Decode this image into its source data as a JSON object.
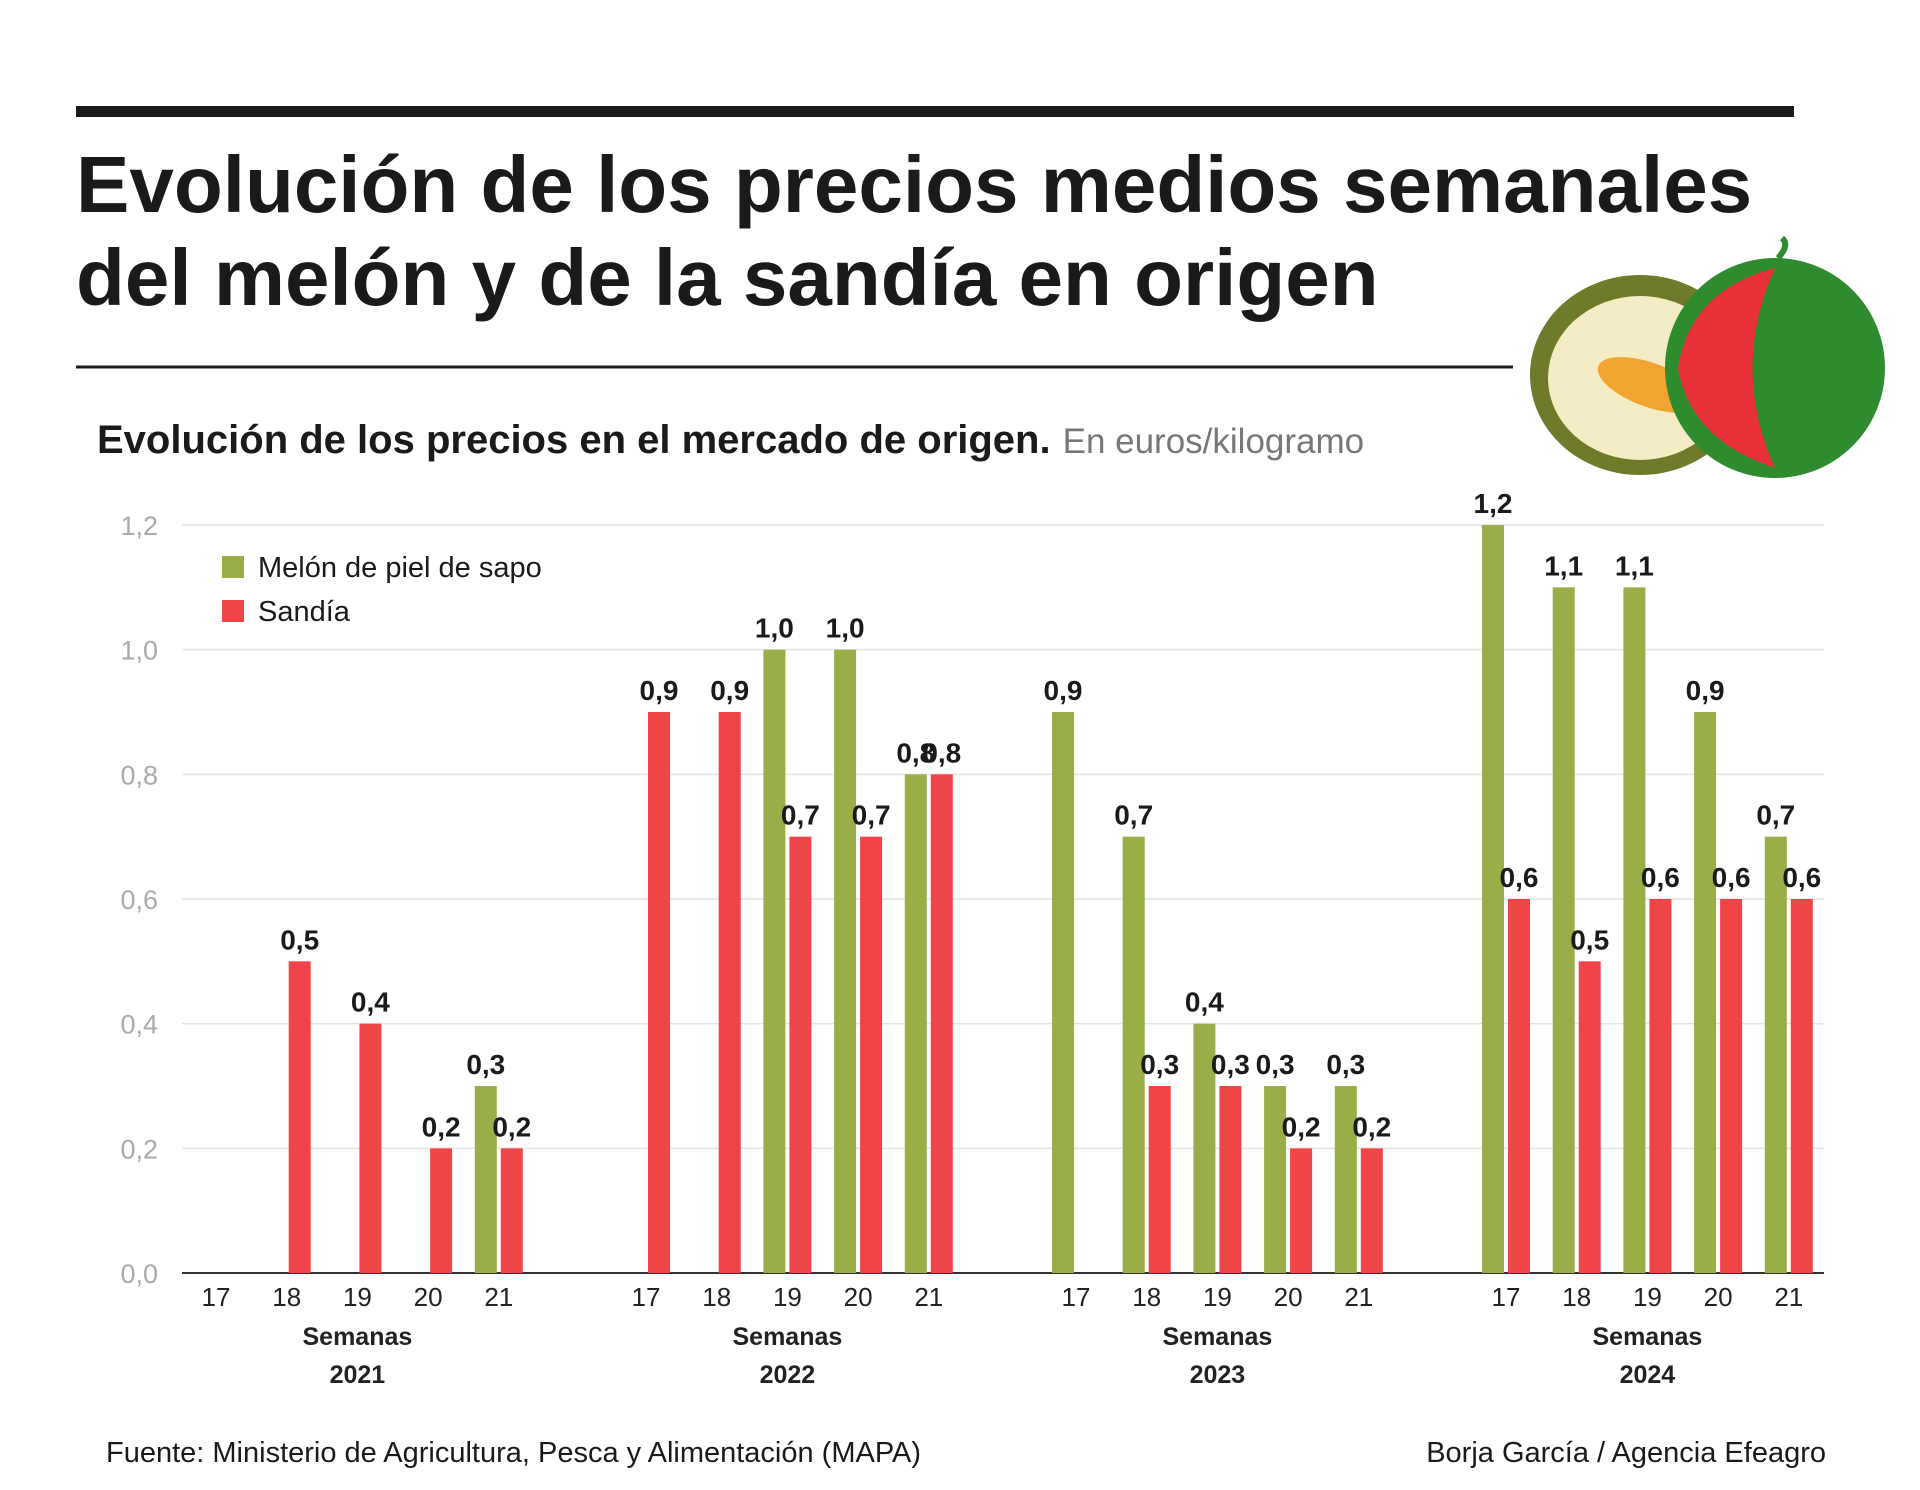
{
  "chart_data": {
    "type": "bar",
    "title_lines": [
      "Evolución de los precios medios semanales",
      "del melón y de la sandía en origen"
    ],
    "subtitle": "Evolución de los precios en el mercado de origen.",
    "unit": "En euros/kilogramo",
    "source": "Fuente: Ministerio de Agricultura, Pesca y Alimentación (MAPA)",
    "credit": "Borja García / Agencia Efeagro",
    "categories": [
      "17",
      "18",
      "19",
      "20",
      "21",
      "17",
      "18",
      "19",
      "20",
      "21",
      "17",
      "18",
      "19",
      "20",
      "21",
      "17",
      "18",
      "19",
      "20",
      "21"
    ],
    "groups": [
      {
        "label": "Semanas",
        "name": "2021"
      },
      {
        "label": "Semanas",
        "name": "2022"
      },
      {
        "label": "Semanas",
        "name": "2023"
      },
      {
        "label": "Semanas",
        "name": "2024"
      }
    ],
    "series": [
      {
        "name": "Melón de piel de sapo",
        "color": "#9aae48",
        "values": [
          null,
          null,
          null,
          null,
          0.3,
          null,
          null,
          1.0,
          1.0,
          0.8,
          0.9,
          0.7,
          0.4,
          0.3,
          0.3,
          1.2,
          1.1,
          1.1,
          0.9,
          0.7
        ],
        "value_labels": [
          null,
          null,
          null,
          null,
          "0,3",
          null,
          null,
          "1,0",
          "1,0",
          "0,8",
          "0,9",
          "0,7",
          "0,4",
          "0,3",
          "0,3",
          "1,2",
          "1,1",
          "1,1",
          "0,9",
          "0,7"
        ]
      },
      {
        "name": "Sandía",
        "color": "#f04548",
        "values": [
          null,
          0.5,
          0.4,
          0.2,
          0.2,
          0.9,
          0.9,
          0.7,
          0.7,
          0.8,
          null,
          0.3,
          0.3,
          0.2,
          0.2,
          0.6,
          0.5,
          0.6,
          0.6,
          0.6
        ],
        "value_labels": [
          null,
          "0,5",
          "0,4",
          "0,2",
          "0,2",
          "0,9",
          "0,9",
          "0,7",
          "0,7",
          "0,8",
          null,
          "0,3",
          "0,3",
          "0,2",
          "0,2",
          "0,6",
          "0,5",
          "0,6",
          "0,6",
          "0,6"
        ]
      }
    ],
    "ylim": [
      0,
      1.2
    ],
    "yticks": [
      {
        "value": 0,
        "label": "0,0"
      },
      {
        "value": 0.2,
        "label": "0,2"
      },
      {
        "value": 0.4,
        "label": "0,4"
      },
      {
        "value": 0.6,
        "label": "0,6"
      },
      {
        "value": 0.8,
        "label": "0,8"
      },
      {
        "value": 1.0,
        "label": "1,0"
      },
      {
        "value": 1.2,
        "label": "1,2"
      }
    ],
    "grid": true
  }
}
